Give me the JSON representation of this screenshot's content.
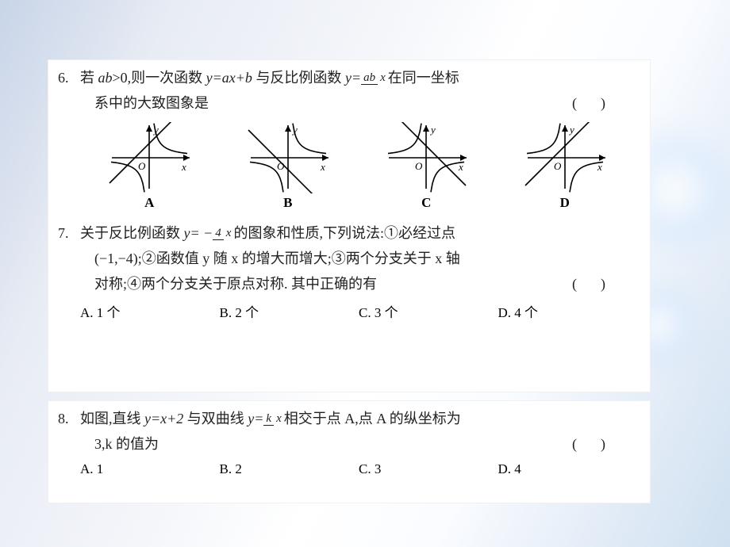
{
  "background": {
    "gradient_colors": [
      "#c8d4e8",
      "#e8ecf4",
      "#f4f6fa",
      "#ffffff",
      "#e0eaf6",
      "#cfe0f0"
    ],
    "glow_color": "#d2e6ff"
  },
  "card_style": {
    "bg": "#ffffff",
    "border": "#f0f0f0",
    "text_color": "#222222",
    "fontsize_body": 18,
    "fontsize_option": 17
  },
  "q6": {
    "num": "6.",
    "line1_a": "若 ",
    "line1_b": ">0,则一次函数 ",
    "line1_c": " 与反比例函数 ",
    "line1_d": "在同一坐标",
    "ab": "ab",
    "y_eq_axb": "y=ax+b",
    "y_eq": "y=",
    "frac_n": "ab",
    "frac_d": "x",
    "line2": "系中的大致图象是",
    "paren": "()",
    "graphs": {
      "labels": [
        "A",
        "B",
        "C",
        "D"
      ],
      "axis_label_x": "x",
      "axis_label_y": "y",
      "origin": "O",
      "stroke": "#000000",
      "stroke_width": 1.6,
      "width": 110,
      "height": 90,
      "configs": [
        {
          "line_slope": 1,
          "line_intercept": 18,
          "hyperbola_quadrants": [
            1,
            3
          ]
        },
        {
          "line_slope": -1,
          "line_intercept": -15,
          "hyperbola_quadrants": [
            1,
            3
          ]
        },
        {
          "line_slope": -1,
          "line_intercept": 15,
          "hyperbola_quadrants": [
            2,
            4
          ]
        },
        {
          "line_slope": 1,
          "line_intercept": 15,
          "hyperbola_quadrants": [
            2,
            4
          ]
        }
      ]
    }
  },
  "q7": {
    "num": "7.",
    "line1_a": "关于反比例函数 ",
    "line1_b": "的图象和性质,下列说法:①必经过点",
    "y_eq_neg": "y= −",
    "frac_n": "4",
    "frac_d": "x",
    "line2": "(−1,−4);②函数值 y 随 x 的增大而增大;③两个分支关于 x 轴",
    "line3": "对称;④两个分支关于原点对称. 其中正确的有",
    "paren": "()",
    "options": {
      "A": "A. 1 个",
      "B": "B. 2 个",
      "C": "C. 3 个",
      "D": "D. 4 个"
    }
  },
  "q8": {
    "num": "8.",
    "line1_a": "如图,直线 ",
    "line1_b": " 与双曲线 ",
    "line1_c": "相交于点 A,点 A 的纵坐标为",
    "y_eq_x2": "y=x+2",
    "y_eq": "y=",
    "frac_n": "k",
    "frac_d": "x",
    "line2": "3,k 的值为",
    "paren": "()",
    "options": {
      "A": "A. 1",
      "B": "B. 2",
      "C": "C. 3",
      "D": "D. 4"
    }
  }
}
